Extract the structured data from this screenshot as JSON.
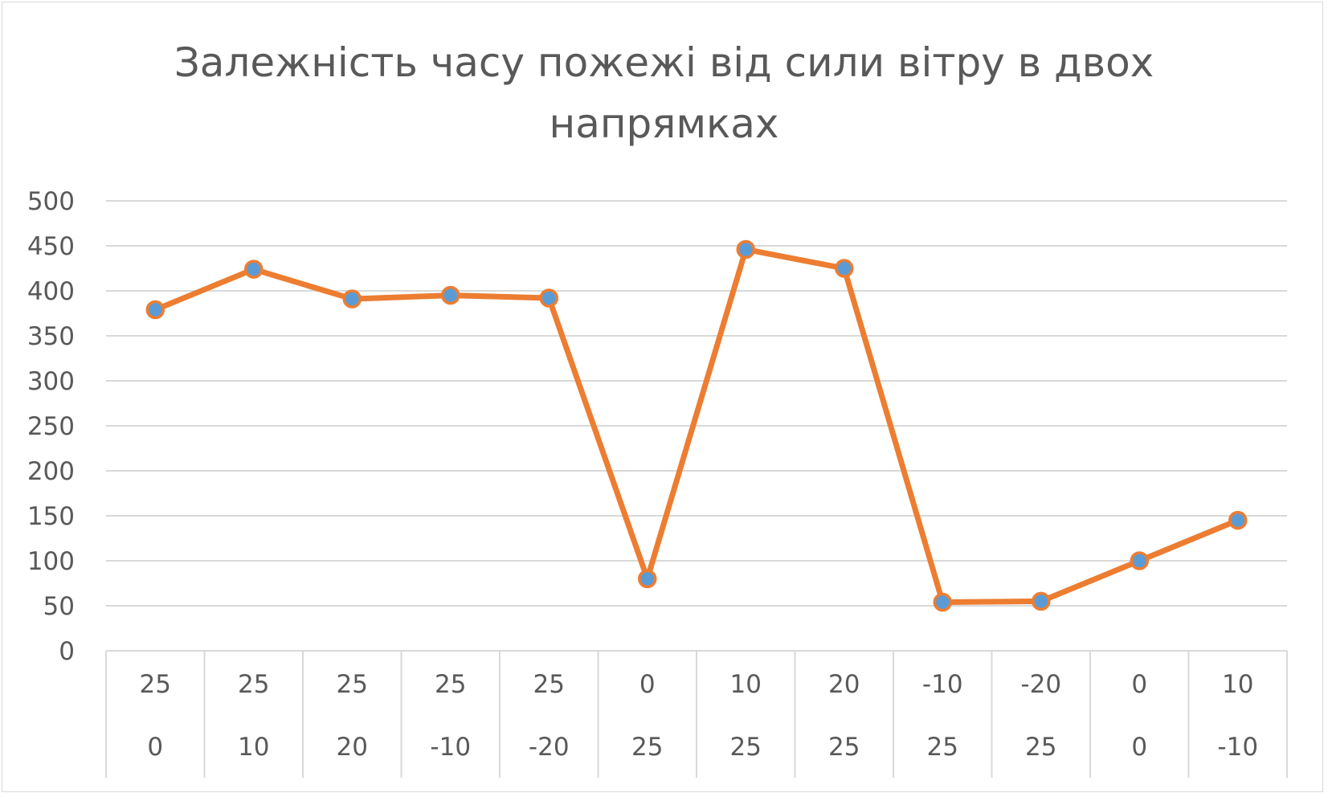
{
  "chart_data": {
    "type": "line",
    "title_lines": [
      "Залежність часу пожежі від сили вітру в двох",
      "напрямках"
    ],
    "xlabel": "",
    "ylabel": "",
    "ylim": [
      0,
      500
    ],
    "yticks": [
      0,
      50,
      100,
      150,
      200,
      250,
      300,
      350,
      400,
      450,
      500
    ],
    "grid": true,
    "legend": "none",
    "categories": [
      [
        "25",
        "0"
      ],
      [
        "25",
        "10"
      ],
      [
        "25",
        "20"
      ],
      [
        "25",
        "-10"
      ],
      [
        "25",
        "-20"
      ],
      [
        "0",
        "25"
      ],
      [
        "10",
        "25"
      ],
      [
        "20",
        "25"
      ],
      [
        "-10",
        "25"
      ],
      [
        "-20",
        "25"
      ],
      [
        "0",
        "0"
      ],
      [
        "10",
        "-10"
      ]
    ],
    "series": [
      {
        "values": [
          379,
          424,
          391,
          395,
          392,
          80,
          446,
          425,
          54,
          55,
          100,
          145
        ],
        "line_color": "#ed7d31",
        "marker_color": "#5b9bd5"
      }
    ]
  }
}
